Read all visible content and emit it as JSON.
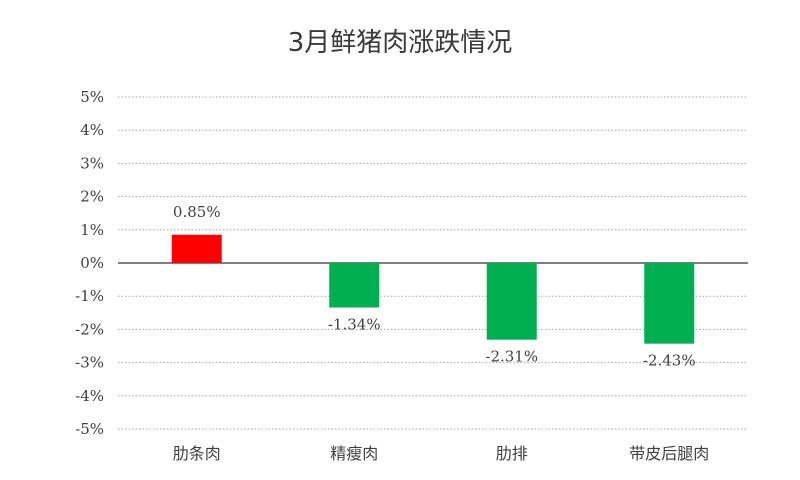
{
  "chart_data": {
    "type": "bar",
    "title": "3月鲜猪肉涨跌情况",
    "xlabel": "",
    "ylabel": "",
    "categories": [
      "肋条肉",
      "精瘦肉",
      "肋排",
      "带皮后腿肉"
    ],
    "values": [
      0.85,
      -1.34,
      -2.31,
      -2.43
    ],
    "value_labels": [
      "0.85%",
      "-1.34%",
      "-2.31%",
      "-2.43%"
    ],
    "ylim": [
      -5,
      5
    ],
    "y_ticks": [
      5,
      4,
      3,
      2,
      1,
      0,
      -1,
      -2,
      -3,
      -4,
      -5
    ],
    "y_tick_labels": [
      "5%",
      "4%",
      "3%",
      "2%",
      "1%",
      "0%",
      "-1%",
      "-2%",
      "-3%",
      "-4%",
      "-5%"
    ],
    "grid": true,
    "grid_style": "dotted",
    "legend": "none",
    "colors": {
      "positive": "#ff0000",
      "negative": "#00b050",
      "grid": "#a6a6a6",
      "zero_line": "#000000",
      "text": "#404040"
    }
  }
}
